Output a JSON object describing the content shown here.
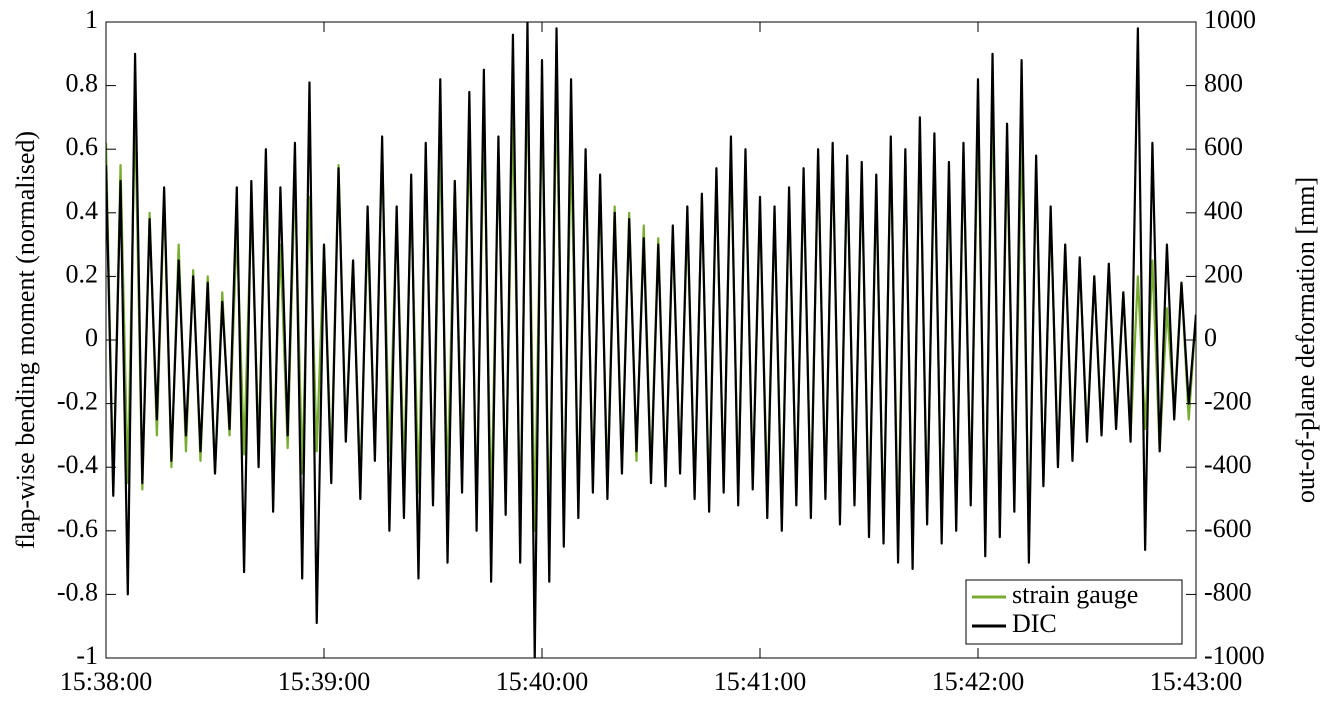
{
  "chart_data": {
    "type": "line",
    "y_label": "flap-wise bending moment (normalised)",
    "y2_label": "out-of-plane deformation [mm]",
    "x": [
      0,
      2,
      4,
      6,
      8,
      10,
      12,
      14,
      16,
      18,
      20,
      22,
      24,
      26,
      28,
      30,
      32,
      34,
      36,
      38,
      40,
      42,
      44,
      46,
      48,
      50,
      52,
      54,
      56,
      58,
      60,
      62,
      64,
      66,
      68,
      70,
      72,
      74,
      76,
      78,
      80,
      82,
      84,
      86,
      88,
      90,
      92,
      94,
      96,
      98,
      100,
      102,
      104,
      106,
      108,
      110,
      112,
      114,
      116,
      118,
      120,
      122,
      124,
      126,
      128,
      130,
      132,
      134,
      136,
      138,
      140,
      142,
      144,
      146,
      148,
      150,
      152,
      154,
      156,
      158,
      160,
      162,
      164,
      166,
      168,
      170,
      172,
      174,
      176,
      178,
      180,
      182,
      184,
      186,
      188,
      190,
      192,
      194,
      196,
      198,
      200,
      202,
      204,
      206,
      208,
      210,
      212,
      214,
      216,
      218,
      220,
      222,
      224,
      226,
      228,
      230,
      232,
      234,
      236,
      238,
      240,
      242,
      244,
      246,
      248,
      250,
      252,
      254,
      256,
      258,
      260,
      262,
      264,
      266,
      268,
      270,
      272,
      274,
      276,
      278,
      280,
      282,
      284,
      286,
      288,
      290,
      292,
      294,
      296,
      298,
      300
    ],
    "xlim": [
      0,
      300
    ],
    "xticks": [
      {
        "value": 0,
        "label": "15:38:00"
      },
      {
        "value": 60,
        "label": "15:39:00"
      },
      {
        "value": 120,
        "label": "15:40:00"
      },
      {
        "value": 180,
        "label": "15:41:00"
      },
      {
        "value": 240,
        "label": "15:42:00"
      },
      {
        "value": 300,
        "label": "15:43:00"
      }
    ],
    "ylim": [
      -1,
      1
    ],
    "yticks": [
      -1,
      -0.8,
      -0.6,
      -0.4,
      -0.2,
      0,
      0.2,
      0.4,
      0.6,
      0.8,
      1
    ],
    "y2lim": [
      -1000,
      1000
    ],
    "y2ticks": [
      -1000,
      -800,
      -600,
      -400,
      -200,
      0,
      200,
      400,
      600,
      800,
      1000
    ],
    "legend": "lower right",
    "series": [
      {
        "name": "strain gauge",
        "color": "#77ac30",
        "values": [
          0.62,
          -0.48,
          0.55,
          -0.45,
          0.72,
          -0.47,
          0.4,
          -0.3,
          0.45,
          -0.4,
          0.3,
          -0.35,
          0.22,
          -0.38,
          0.2,
          -0.42,
          0.15,
          -0.3,
          0.35,
          -0.36,
          0.42,
          -0.33,
          0.5,
          -0.4,
          0.3,
          -0.34,
          0.52,
          -0.42,
          0.45,
          -0.35,
          0.3,
          -0.4,
          0.55,
          -0.3,
          0.25,
          -0.45,
          0.35,
          -0.36,
          0.6,
          -0.38,
          0.4,
          -0.42,
          0.45,
          -0.48,
          0.55,
          -0.5,
          0.62,
          -0.46,
          0.5,
          -0.4,
          0.66,
          -0.52,
          0.7,
          -0.55,
          0.58,
          -0.5,
          0.72,
          -0.58,
          0.85,
          -0.6,
          0.75,
          -0.62,
          0.8,
          -0.55,
          0.62,
          -0.5,
          0.55,
          -0.45,
          0.48,
          -0.46,
          0.42,
          -0.4,
          0.4,
          -0.38,
          0.36,
          -0.42,
          0.32,
          -0.44,
          0.34,
          -0.4,
          0.38,
          -0.48,
          0.45,
          -0.5,
          0.52,
          -0.46,
          0.6,
          -0.48,
          0.55,
          -0.45,
          0.42,
          -0.5,
          0.4,
          -0.55,
          0.45,
          -0.5,
          0.5,
          -0.52,
          0.58,
          -0.48,
          0.6,
          -0.55,
          0.56,
          -0.5,
          0.52,
          -0.58,
          0.48,
          -0.6,
          0.62,
          -0.62,
          0.58,
          -0.66,
          0.65,
          -0.55,
          0.6,
          -0.6,
          0.5,
          -0.55,
          0.58,
          -0.5,
          0.72,
          -0.62,
          0.78,
          -0.58,
          0.6,
          -0.5,
          0.65,
          -0.64,
          0.55,
          -0.45,
          0.4,
          -0.38,
          0.3,
          -0.35,
          0.25,
          -0.3,
          0.2,
          -0.28,
          0.22,
          -0.25,
          0.15,
          -0.3,
          0.2,
          -0.28,
          0.25,
          -0.35,
          0.1,
          -0.22,
          0.18,
          -0.25,
          0.08
        ]
      },
      {
        "name": "DIC",
        "color": "#000000",
        "axis": "y2",
        "values": [
          550,
          -490,
          500,
          -800,
          900,
          -450,
          380,
          -250,
          480,
          -380,
          250,
          -300,
          200,
          -350,
          180,
          -420,
          120,
          -280,
          480,
          -730,
          500,
          -400,
          600,
          -540,
          480,
          -300,
          620,
          -750,
          810,
          -890,
          300,
          -450,
          540,
          -320,
          250,
          -500,
          420,
          -380,
          640,
          -600,
          420,
          -560,
          520,
          -750,
          620,
          -520,
          820,
          -700,
          500,
          -480,
          780,
          -600,
          850,
          -760,
          640,
          -550,
          960,
          -700,
          1000,
          -1000,
          880,
          -760,
          980,
          -650,
          820,
          -560,
          600,
          -480,
          520,
          -500,
          400,
          -420,
          380,
          -350,
          320,
          -450,
          300,
          -460,
          360,
          -420,
          420,
          -500,
          460,
          -540,
          540,
          -480,
          640,
          -520,
          600,
          -470,
          450,
          -560,
          420,
          -600,
          480,
          -520,
          540,
          -560,
          600,
          -500,
          620,
          -580,
          580,
          -520,
          560,
          -620,
          520,
          -640,
          640,
          -700,
          600,
          -720,
          700,
          -580,
          650,
          -640,
          560,
          -600,
          620,
          -520,
          820,
          -680,
          900,
          -620,
          680,
          -540,
          880,
          -700,
          580,
          -460,
          420,
          -400,
          300,
          -380,
          260,
          -320,
          200,
          -300,
          240,
          -280,
          150,
          -320,
          980,
          -660,
          620,
          -350,
          300,
          -250,
          180,
          -200,
          80
        ]
      }
    ]
  }
}
